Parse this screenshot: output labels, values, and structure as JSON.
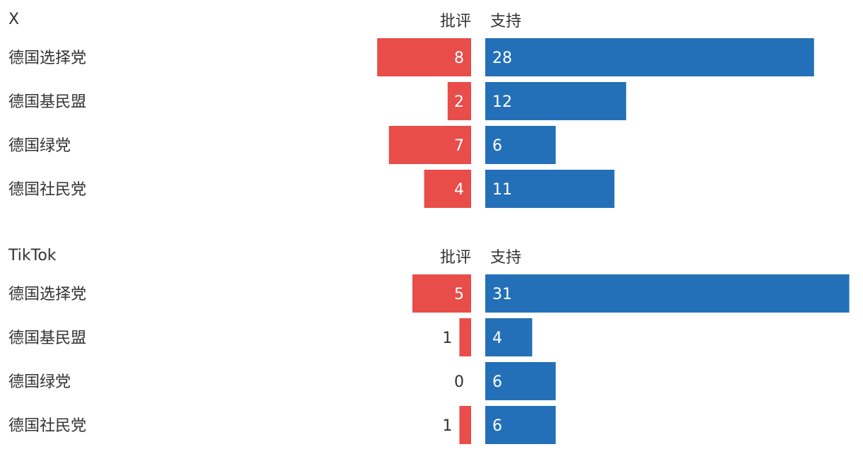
{
  "colors": {
    "criticism": "#e84d4a",
    "support": "#2470b8",
    "text": "#333333",
    "label_on_bar": "#ffffff"
  },
  "chart_data": [
    {
      "type": "bar",
      "panel_title": "X",
      "left_header": "批评",
      "right_header": "支持",
      "categories": [
        "德国选择党",
        "德国基民盟",
        "德国绿党",
        "德国社民党"
      ],
      "series": [
        {
          "name": "批评",
          "values": [
            8,
            2,
            7,
            4
          ]
        },
        {
          "name": "支持",
          "values": [
            28,
            12,
            6,
            11
          ]
        }
      ]
    },
    {
      "type": "bar",
      "panel_title": "TikTok",
      "left_header": "批评",
      "right_header": "支持",
      "categories": [
        "德国选择党",
        "德国基民盟",
        "德国绿党",
        "德国社民党"
      ],
      "series": [
        {
          "name": "批评",
          "values": [
            5,
            1,
            0,
            1
          ]
        },
        {
          "name": "支持",
          "values": [
            31,
            4,
            6,
            6
          ]
        }
      ]
    }
  ]
}
